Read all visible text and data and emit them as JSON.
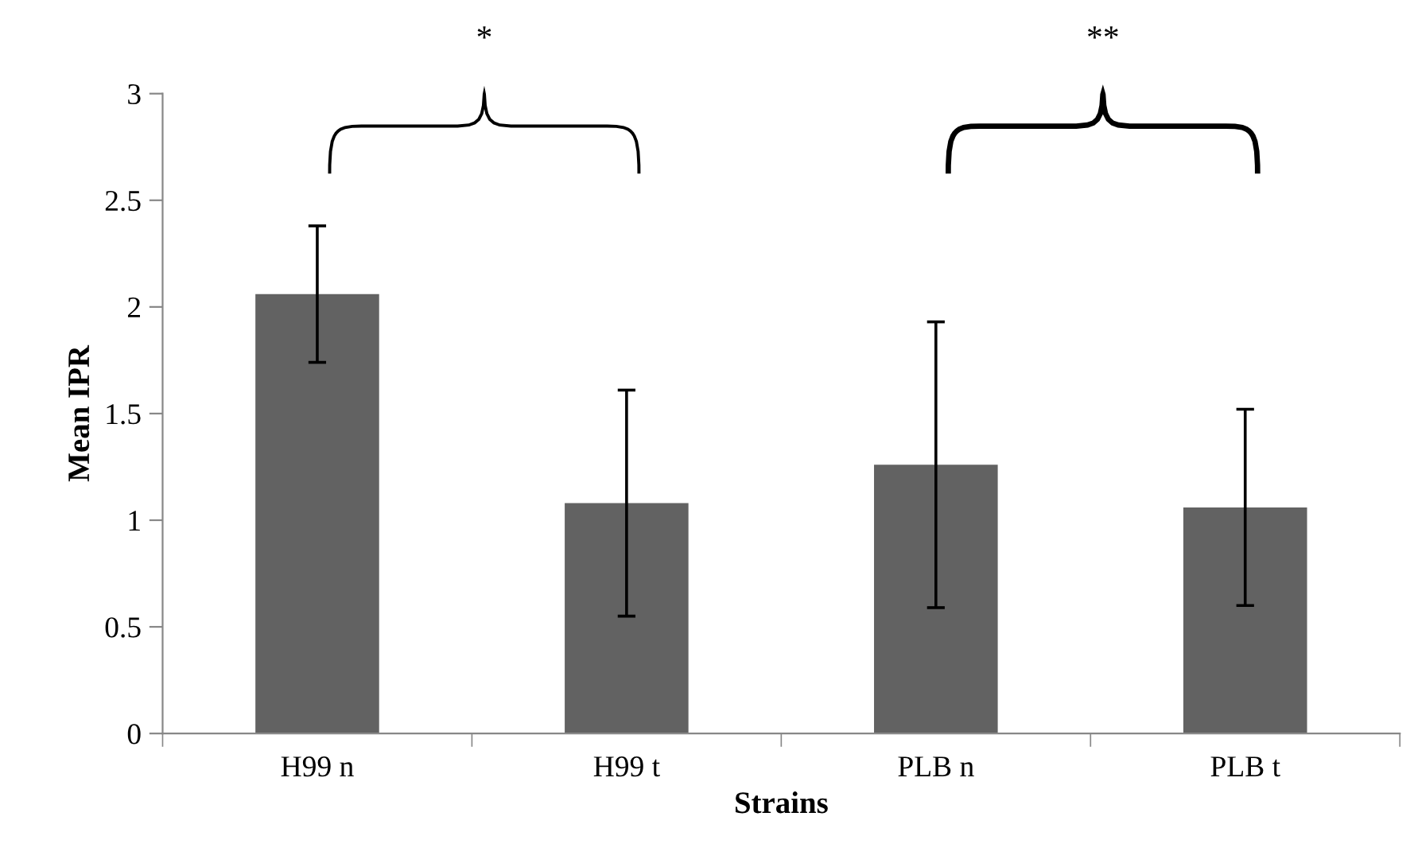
{
  "chart_data": {
    "type": "bar",
    "xlabel": "Strains",
    "ylabel": "Mean IPR",
    "categories": [
      "H99 n",
      "H99 t",
      "PLB n",
      "PLB t"
    ],
    "values": [
      2.06,
      1.08,
      1.26,
      1.06
    ],
    "errors": [
      0.32,
      0.53,
      0.67,
      0.46
    ],
    "color": "#626262",
    "ylim": [
      0,
      3
    ],
    "yticks": [
      0,
      0.5,
      1,
      1.5,
      2,
      2.5,
      3
    ],
    "annotations": [
      "*",
      "**"
    ]
  }
}
